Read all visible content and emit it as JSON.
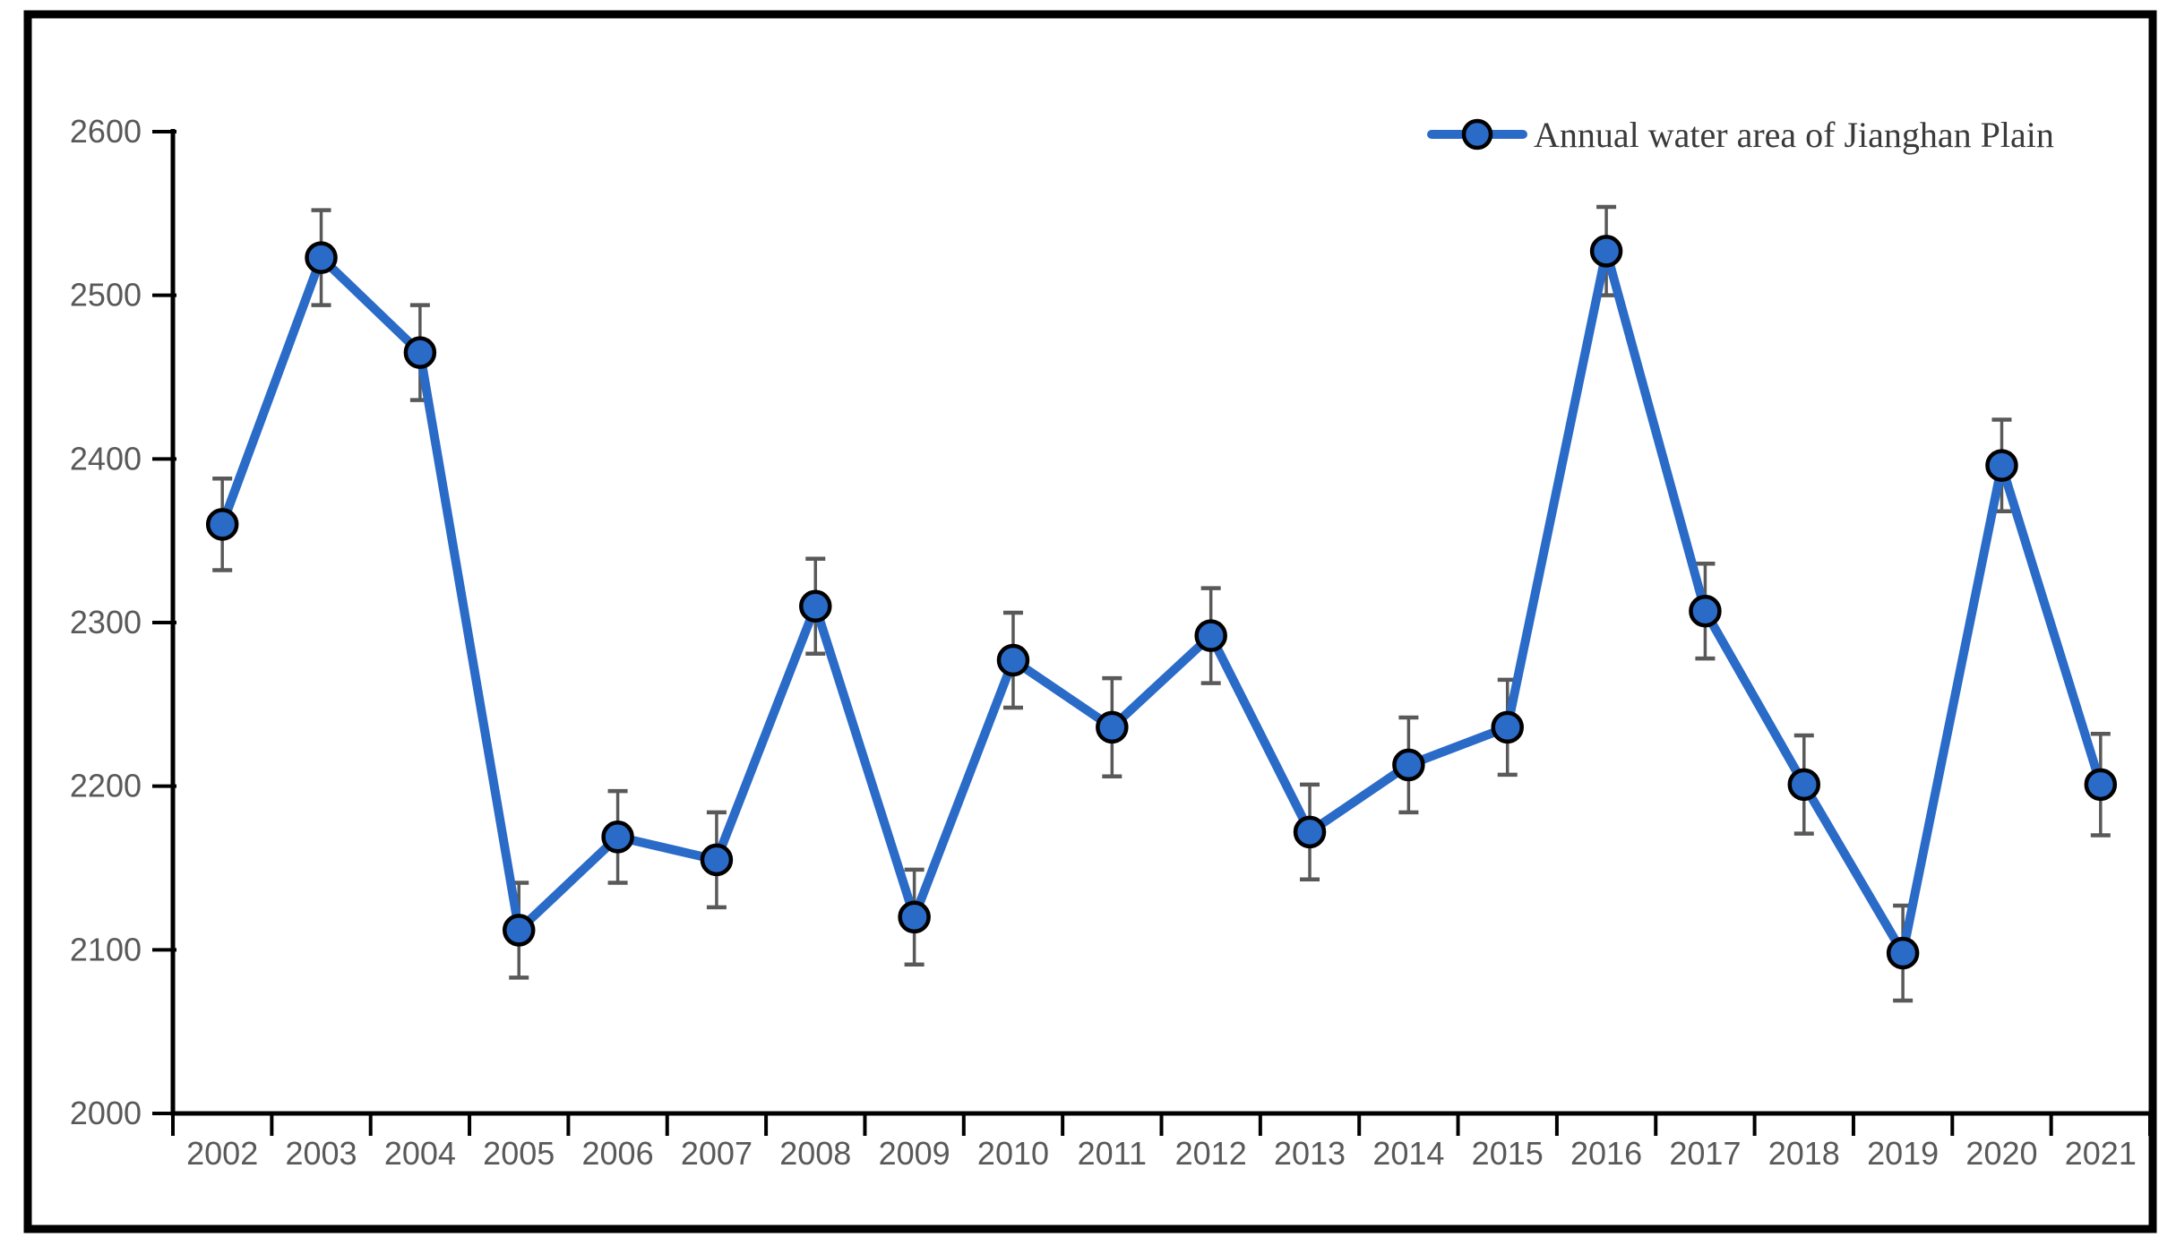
{
  "chart_data": {
    "type": "line",
    "title": "",
    "xlabel": "",
    "ylabel": "",
    "legend": "Annual water area of Jianghan Plain",
    "legend_position": "top-right-inside",
    "grid": false,
    "categories": [
      "2002",
      "2003",
      "2004",
      "2005",
      "2006",
      "2007",
      "2008",
      "2009",
      "2010",
      "2011",
      "2012",
      "2013",
      "2014",
      "2015",
      "2016",
      "2017",
      "2018",
      "2019",
      "2020",
      "2021"
    ],
    "series": [
      {
        "name": "Annual water area of Jianghan Plain",
        "values": [
          2360,
          2523,
          2465,
          2112,
          2169,
          2155,
          2310,
          2120,
          2277,
          2236,
          2292,
          2172,
          2213,
          2236,
          2527,
          2307,
          2201,
          2098,
          2396,
          2201
        ],
        "errors": [
          28,
          29,
          29,
          29,
          28,
          29,
          29,
          29,
          29,
          30,
          29,
          29,
          29,
          29,
          27,
          29,
          30,
          29,
          28,
          31
        ]
      }
    ],
    "ylim": [
      2000,
      2600
    ],
    "ytick_step": 100,
    "yticks": [
      "2000",
      "2100",
      "2200",
      "2300",
      "2400",
      "2500",
      "2600"
    ],
    "colors": {
      "line": "#2A6BC8",
      "marker_fill": "#2A6BC8",
      "marker_outline": "#000000",
      "error_bar": "#595959",
      "axis": "#000000",
      "tick_label": "#595959",
      "legend_text": "#3A3A3A",
      "frame_border": "#000000",
      "background": "#FFFFFF"
    }
  }
}
